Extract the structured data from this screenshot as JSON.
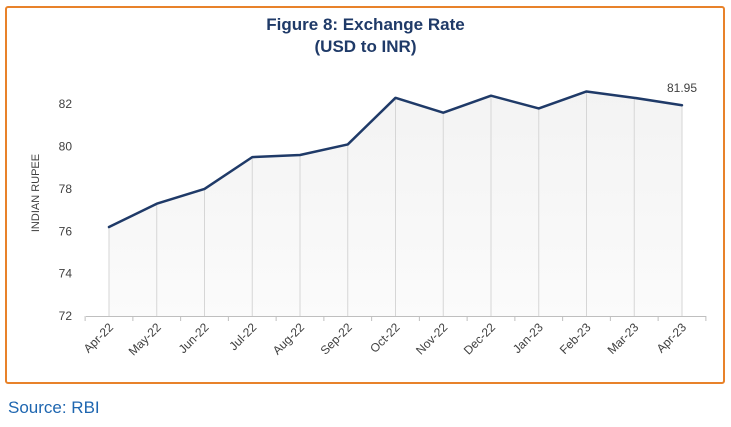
{
  "source": "Source: RBI",
  "chart_data": {
    "type": "area",
    "title": "Figure 8: Exchange Rate",
    "subtitle": "(USD to INR)",
    "xlabel": "",
    "ylabel": "INDIAN RUPEE",
    "categories": [
      "Apr-22",
      "May-22",
      "Jun-22",
      "Jul-22",
      "Aug-22",
      "Sep-22",
      "Oct-22",
      "Nov-22",
      "Dec-22",
      "Jan-23",
      "Feb-23",
      "Mar-23",
      "Apr-23"
    ],
    "series": [
      {
        "name": "",
        "values": [
          76.2,
          77.3,
          78.0,
          79.5,
          79.6,
          80.1,
          82.3,
          81.6,
          82.4,
          81.8,
          82.6,
          82.3,
          81.95
        ]
      }
    ],
    "data_labels": [
      {
        "category": "Apr-23",
        "text": "81.95"
      }
    ],
    "ylim": [
      72,
      83
    ],
    "yticks": [
      72,
      74,
      76,
      78,
      80,
      82
    ],
    "grid": "vertical",
    "legend": "none",
    "colors": {
      "line": "#1f3a68",
      "frame": "#e8822a",
      "title": "#1f3a68",
      "source": "#1e66b0"
    }
  }
}
